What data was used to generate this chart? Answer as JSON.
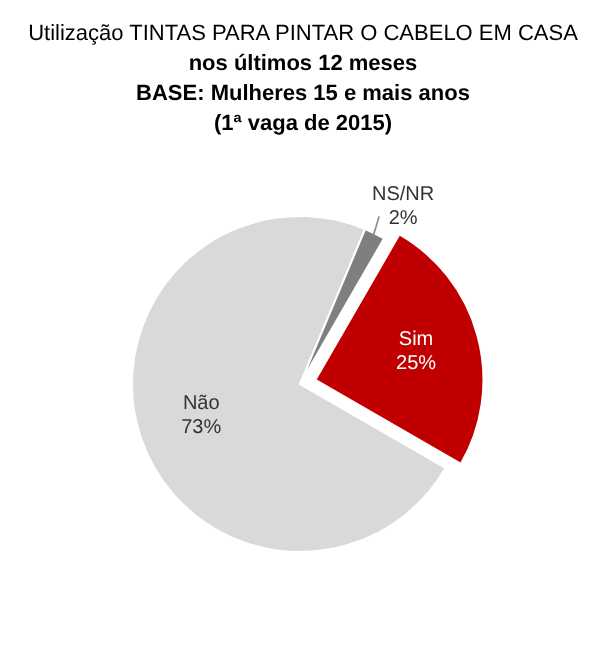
{
  "chart_data": {
    "type": "pie",
    "title": "Utilização TINTAS PARA PINTAR O CABELO EM CASA\nnos últimos 12 meses",
    "subtitle": "BASE: Mulheres 15 e mais anos\n(1ª vaga de 2015)",
    "categories": [
      "Sim",
      "Não",
      "NS/NR"
    ],
    "values": [
      25,
      73,
      2
    ],
    "colors": [
      "#c00000",
      "#d9d9d9",
      "#7f7f7f"
    ],
    "value_labels": [
      "25%",
      "73%",
      "2%"
    ]
  }
}
